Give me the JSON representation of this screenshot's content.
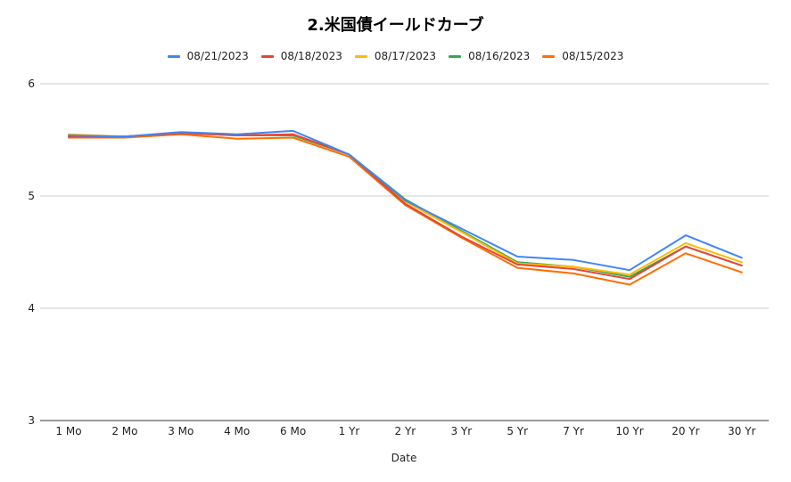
{
  "chart_data": {
    "type": "line",
    "title": "2.米国債イールドカーブ",
    "xlabel": "Date",
    "ylabel": "",
    "ylim": [
      3,
      6
    ],
    "yticks": [
      "3",
      "4",
      "5",
      "6"
    ],
    "grid": true,
    "legend_position": "top",
    "categories": [
      "1 Mo",
      "2 Mo",
      "3 Mo",
      "4 Mo",
      "6 Mo",
      "1 Yr",
      "2 Yr",
      "3 Yr",
      "5 Yr",
      "7 Yr",
      "10 Yr",
      "20 Yr",
      "30 Yr"
    ],
    "series": [
      {
        "name": "08/21/2023",
        "color": "#4285f4",
        "values": [
          5.54,
          5.53,
          5.57,
          5.55,
          5.58,
          5.37,
          4.96,
          4.71,
          4.46,
          4.43,
          4.34,
          4.65,
          4.45
        ]
      },
      {
        "name": "08/18/2023",
        "color": "#ea4335",
        "values": [
          5.53,
          5.53,
          5.56,
          5.54,
          5.55,
          5.37,
          4.93,
          4.64,
          4.39,
          4.35,
          4.26,
          4.55,
          4.38
        ]
      },
      {
        "name": "08/17/2023",
        "color": "#fbbc04",
        "values": [
          5.55,
          5.53,
          5.56,
          5.54,
          5.55,
          5.37,
          4.95,
          4.68,
          4.4,
          4.37,
          4.3,
          4.58,
          4.41
        ]
      },
      {
        "name": "08/16/2023",
        "color": "#34a853",
        "values": [
          5.53,
          5.53,
          5.56,
          5.54,
          5.54,
          5.37,
          4.97,
          4.69,
          4.41,
          4.37,
          4.28,
          4.55,
          4.38
        ]
      },
      {
        "name": "08/15/2023",
        "color": "#ff6d01",
        "values": [
          5.52,
          5.52,
          5.55,
          5.51,
          5.52,
          5.35,
          4.92,
          4.63,
          4.36,
          4.31,
          4.21,
          4.49,
          4.32
        ]
      }
    ]
  }
}
